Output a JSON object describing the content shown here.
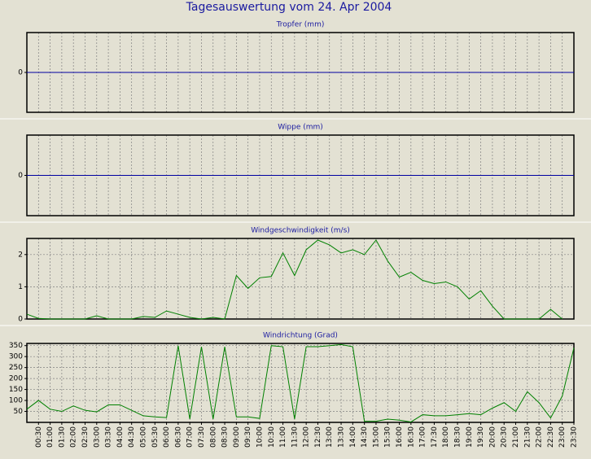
{
  "title": "Tagesauswertung vom 24. Apr 2004",
  "chart_data": [
    {
      "type": "line",
      "title": "Tropfer (mm)",
      "color": "#0000a0",
      "ylim": [
        -1,
        1
      ],
      "yticks": [
        0
      ],
      "grid": true,
      "values": [
        0,
        0,
        0,
        0,
        0,
        0,
        0,
        0,
        0,
        0,
        0,
        0,
        0,
        0,
        0,
        0,
        0,
        0,
        0,
        0,
        0,
        0,
        0,
        0,
        0,
        0,
        0,
        0,
        0,
        0,
        0,
        0,
        0,
        0,
        0,
        0,
        0,
        0,
        0,
        0,
        0,
        0,
        0,
        0,
        0,
        0,
        0,
        0
      ]
    },
    {
      "type": "line",
      "title": "Wippe (mm)",
      "color": "#0000a0",
      "ylim": [
        -1,
        1
      ],
      "yticks": [
        0
      ],
      "grid": true,
      "values": [
        0,
        0,
        0,
        0,
        0,
        0,
        0,
        0,
        0,
        0,
        0,
        0,
        0,
        0,
        0,
        0,
        0,
        0,
        0,
        0,
        0,
        0,
        0,
        0,
        0,
        0,
        0,
        0,
        0,
        0,
        0,
        0,
        0,
        0,
        0,
        0,
        0,
        0,
        0,
        0,
        0,
        0,
        0,
        0,
        0,
        0,
        0,
        0
      ]
    },
    {
      "type": "line",
      "title": "Windgeschwindigkeit (m/s)",
      "color": "#008000",
      "ylim": [
        0,
        2.5
      ],
      "yticks": [
        0,
        1,
        2
      ],
      "grid": true,
      "values": [
        0.15,
        0.02,
        0,
        0,
        0,
        0,
        0.1,
        0,
        0,
        0,
        0.08,
        0.05,
        0.25,
        0.15,
        0.05,
        0,
        0.05,
        0,
        1.35,
        0.95,
        1.28,
        1.32,
        2.05,
        1.35,
        2.15,
        2.45,
        2.3,
        2.05,
        2.15,
        2.0,
        2.45,
        1.8,
        1.3,
        1.45,
        1.2,
        1.1,
        1.15,
        1.0,
        0.62,
        0.88,
        0.4,
        0,
        0,
        0,
        0,
        0.3,
        0,
        null
      ]
    },
    {
      "type": "line",
      "title": "Windrichtung (Grad)",
      "color": "#008000",
      "ylim": [
        0,
        360
      ],
      "yticks": [
        50,
        100,
        150,
        200,
        250,
        300,
        350
      ],
      "grid": true,
      "categories": [
        null,
        "00:30",
        "01:00",
        "01:30",
        "02:00",
        "02:30",
        "03:00",
        "03:30",
        "04:00",
        "04:30",
        "05:00",
        "05:30",
        "06:00",
        "06:30",
        "07:00",
        "07:30",
        "08:00",
        "08:30",
        "09:00",
        "09:30",
        "10:00",
        "10:30",
        "11:00",
        "11:30",
        "12:00",
        "12:30",
        "13:00",
        "13:30",
        "14:00",
        "14:30",
        "15:00",
        "15:30",
        "16:00",
        "16:30",
        "17:00",
        "17:30",
        "18:00",
        "18:30",
        "19:00",
        "19:30",
        "20:00",
        "20:30",
        "21:00",
        "21:30",
        "22:00",
        "22:30",
        "23:00",
        "23:30"
      ],
      "values": [
        60,
        100,
        60,
        50,
        75,
        55,
        48,
        80,
        80,
        55,
        30,
        25,
        22,
        350,
        15,
        345,
        15,
        345,
        25,
        25,
        18,
        350,
        345,
        15,
        345,
        345,
        350,
        355,
        345,
        5,
        5,
        15,
        10,
        2,
        35,
        30,
        30,
        35,
        40,
        35,
        65,
        90,
        50,
        140,
        90,
        20,
        120,
        340
      ]
    }
  ]
}
